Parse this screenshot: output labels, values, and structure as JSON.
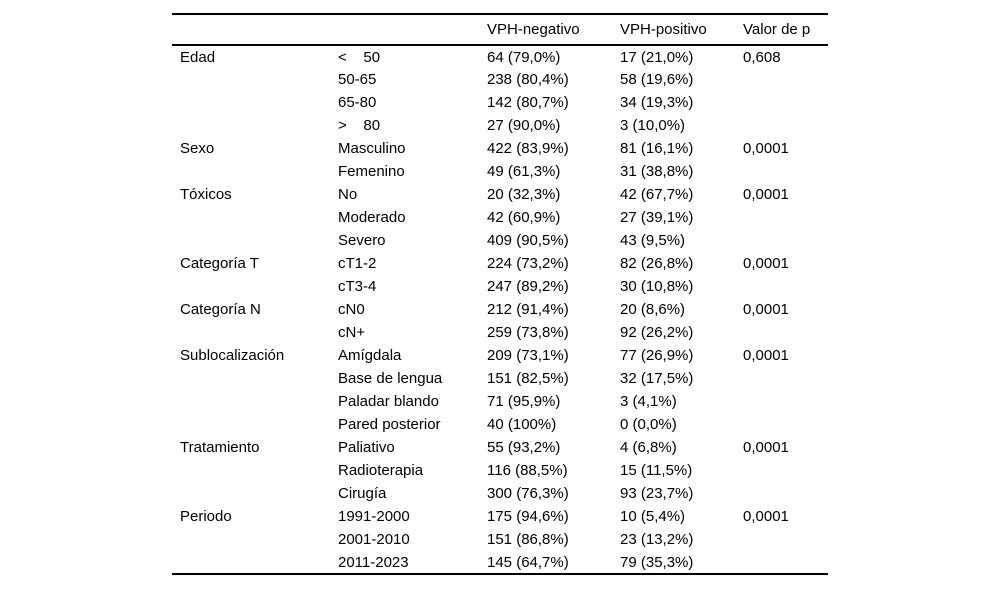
{
  "colors": {
    "background": "#ffffff",
    "text": "#000000",
    "rule": "#000000"
  },
  "table": {
    "headers": [
      "",
      "",
      "VPH-negativo",
      "VPH-positivo",
      "Valor de p"
    ],
    "sections": [
      {
        "category": "Edad",
        "rows": [
          {
            "label": "<    50",
            "vph_negativo": "64 (79,0%)",
            "vph_positivo": "17 (21,0%)",
            "valor_p": "0,608"
          },
          {
            "label": "50-65",
            "vph_negativo": "238 (80,4%)",
            "vph_positivo": "58 (19,6%)",
            "valor_p": ""
          },
          {
            "label": "65-80",
            "vph_negativo": "142 (80,7%)",
            "vph_positivo": "34 (19,3%)",
            "valor_p": ""
          },
          {
            "label": ">    80",
            "vph_negativo": "27 (90,0%)",
            "vph_positivo": "3 (10,0%)",
            "valor_p": ""
          }
        ]
      },
      {
        "category": "Sexo",
        "rows": [
          {
            "label": "Masculino",
            "vph_negativo": "422 (83,9%)",
            "vph_positivo": "81 (16,1%)",
            "valor_p": "0,0001"
          },
          {
            "label": "Femenino",
            "vph_negativo": "49 (61,3%)",
            "vph_positivo": "31 (38,8%)",
            "valor_p": ""
          }
        ]
      },
      {
        "category": "Tóxicos",
        "rows": [
          {
            "label": "No",
            "vph_negativo": "20 (32,3%)",
            "vph_positivo": "42 (67,7%)",
            "valor_p": "0,0001"
          },
          {
            "label": "Moderado",
            "vph_negativo": "42 (60,9%)",
            "vph_positivo": "27 (39,1%)",
            "valor_p": ""
          },
          {
            "label": "Severo",
            "vph_negativo": "409 (90,5%)",
            "vph_positivo": "43 (9,5%)",
            "valor_p": ""
          }
        ]
      },
      {
        "category": "Categoría T",
        "rows": [
          {
            "label": "cT1-2",
            "vph_negativo": "224 (73,2%)",
            "vph_positivo": "82 (26,8%)",
            "valor_p": "0,0001"
          },
          {
            "label": "cT3-4",
            "vph_negativo": "247 (89,2%)",
            "vph_positivo": "30 (10,8%)",
            "valor_p": ""
          }
        ]
      },
      {
        "category": "Categoría N",
        "rows": [
          {
            "label": "cN0",
            "vph_negativo": "212 (91,4%)",
            "vph_positivo": "20 (8,6%)",
            "valor_p": "0,0001"
          },
          {
            "label": "cN+",
            "vph_negativo": "259 (73,8%)",
            "vph_positivo": "92 (26,2%)",
            "valor_p": ""
          }
        ]
      },
      {
        "category": "Sublocalización",
        "rows": [
          {
            "label": "Amígdala",
            "vph_negativo": "209 (73,1%)",
            "vph_positivo": "77 (26,9%)",
            "valor_p": "0,0001"
          },
          {
            "label": "Base de lengua",
            "vph_negativo": "151 (82,5%)",
            "vph_positivo": "32 (17,5%)",
            "valor_p": ""
          },
          {
            "label": "Paladar blando",
            "vph_negativo": "71 (95,9%)",
            "vph_positivo": "3 (4,1%)",
            "valor_p": ""
          },
          {
            "label": "Pared posterior",
            "vph_negativo": "40 (100%)",
            "vph_positivo": "0 (0,0%)",
            "valor_p": ""
          }
        ]
      },
      {
        "category": "Tratamiento",
        "rows": [
          {
            "label": "Paliativo",
            "vph_negativo": "55 (93,2%)",
            "vph_positivo": "4 (6,8%)",
            "valor_p": "0,0001"
          },
          {
            "label": "Radioterapia",
            "vph_negativo": "116 (88,5%)",
            "vph_positivo": "15 (11,5%)",
            "valor_p": ""
          },
          {
            "label": "Cirugía",
            "vph_negativo": "300 (76,3%)",
            "vph_positivo": "93 (23,7%)",
            "valor_p": ""
          }
        ]
      },
      {
        "category": "Periodo",
        "rows": [
          {
            "label": "1991-2000",
            "vph_negativo": "175 (94,6%)",
            "vph_positivo": "10 (5,4%)",
            "valor_p": "0,0001"
          },
          {
            "label": "2001-2010",
            "vph_negativo": "151 (86,8%)",
            "vph_positivo": "23 (13,2%)",
            "valor_p": ""
          },
          {
            "label": "2011-2023",
            "vph_negativo": "145 (64,7%)",
            "vph_positivo": "79 (35,3%)",
            "valor_p": ""
          }
        ]
      }
    ]
  }
}
